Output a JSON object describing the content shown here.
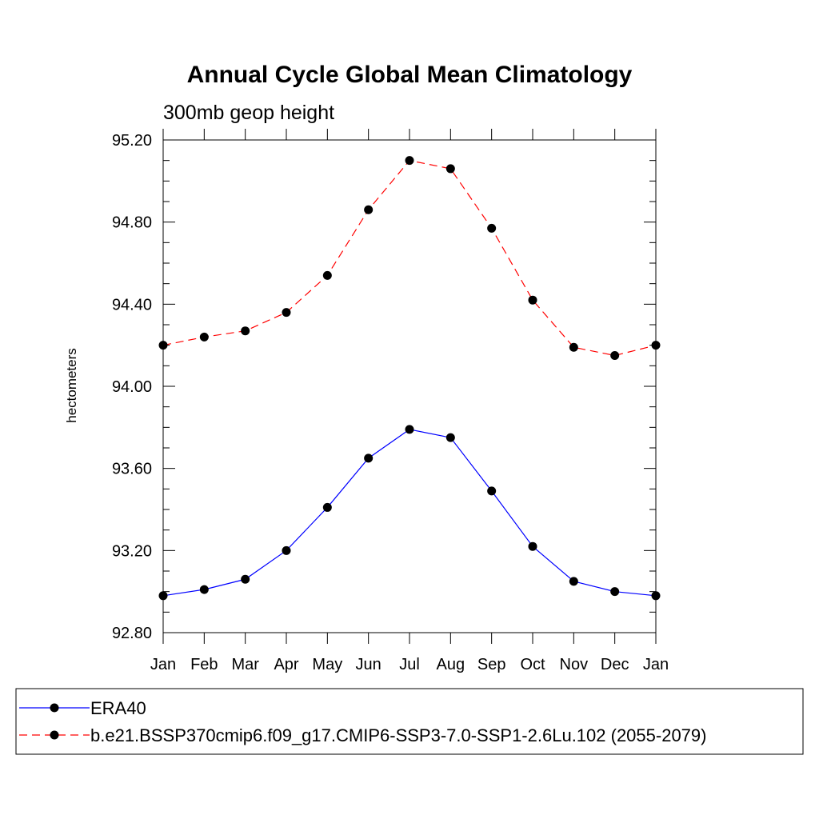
{
  "chart_data": {
    "type": "line",
    "title": "Annual Cycle Global Mean Climatology",
    "subtitle": "300mb geop height",
    "ylabel": "hectometers",
    "xlabel": "",
    "categories": [
      "Jan",
      "Feb",
      "Mar",
      "Apr",
      "May",
      "Jun",
      "Jul",
      "Aug",
      "Sep",
      "Oct",
      "Nov",
      "Dec",
      "Jan"
    ],
    "ylim": [
      92.8,
      95.2
    ],
    "y_major_ticks": [
      "92.80",
      "93.20",
      "93.60",
      "94.00",
      "94.40",
      "94.80",
      "95.20"
    ],
    "grid": false,
    "legend_position": "bottom",
    "series": [
      {
        "name": "ERA40",
        "color": "#0000ff",
        "line_style": "solid",
        "marker": "filled-circle",
        "values": [
          92.98,
          93.01,
          93.06,
          93.2,
          93.41,
          93.65,
          93.79,
          93.75,
          93.49,
          93.22,
          93.05,
          93.0,
          92.98
        ]
      },
      {
        "name": "b.e21.BSSP370cmip6.f09_g17.CMIP6-SSP3-7.0-SSP1-2.6Lu.102 (2055-2079)",
        "color": "#ff0000",
        "line_style": "dashed",
        "marker": "filled-circle",
        "values": [
          94.2,
          94.24,
          94.27,
          94.36,
          94.54,
          94.86,
          95.1,
          95.06,
          94.77,
          94.42,
          94.19,
          94.15,
          94.2
        ]
      }
    ]
  }
}
